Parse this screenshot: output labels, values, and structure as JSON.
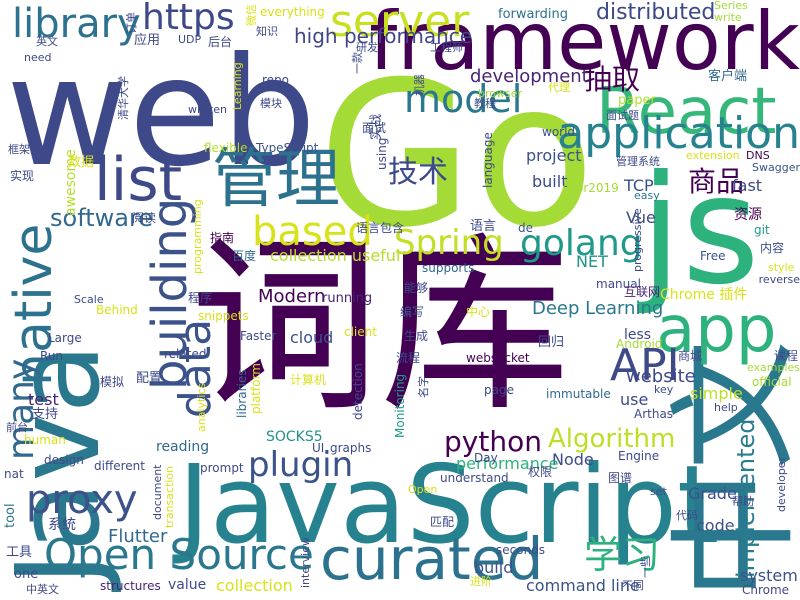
{
  "words": [
    {
      "text": "Go",
      "color": "#a5db36"
    },
    {
      "text": "web",
      "color": "#3e4989"
    },
    {
      "text": "词库",
      "color": "#440154"
    },
    {
      "text": "JavaScript",
      "color": "#26828e"
    },
    {
      "text": "Java",
      "color": "#2a788e"
    },
    {
      "text": "framework",
      "color": "#440154"
    },
    {
      "text": "js",
      "color": "#2db27d"
    },
    {
      "text": "中文",
      "color": "#2a788e"
    },
    {
      "text": "React",
      "color": "#35b779"
    },
    {
      "text": "app",
      "color": "#2db27d"
    },
    {
      "text": "curated",
      "color": "#2c728e"
    },
    {
      "text": "Open Source",
      "color": "#2a788e"
    },
    {
      "text": "list",
      "color": "#3e4989"
    },
    {
      "text": "管理",
      "color": "#2c728e"
    },
    {
      "text": "native",
      "color": "#2c728e"
    },
    {
      "text": "server",
      "color": "#c8e020"
    },
    {
      "text": "library",
      "color": "#2c728e"
    },
    {
      "text": "application",
      "color": "#26828e"
    },
    {
      "text": "building",
      "color": "#3b528b"
    },
    {
      "text": "API",
      "color": "#3e4989"
    },
    {
      "text": "model",
      "color": "#2a788e"
    },
    {
      "text": "proxy",
      "color": "#3b528b"
    },
    {
      "text": "based",
      "color": "#d8e219"
    },
    {
      "text": "Spring",
      "color": "#c2df23"
    },
    {
      "text": "golang",
      "color": "#1f9a8a"
    },
    {
      "text": "data",
      "color": "#3b528b"
    },
    {
      "text": "https",
      "color": "#3e4989"
    },
    {
      "text": "many",
      "color": "#31688e"
    },
    {
      "text": "plugin",
      "color": "#3b528b"
    },
    {
      "text": "python",
      "color": "#440154"
    },
    {
      "text": "Algorithm",
      "color": "#bddf26"
    },
    {
      "text": "学习",
      "color": "#2db27d"
    },
    {
      "text": "技术",
      "color": "#3e4989"
    },
    {
      "text": "商品",
      "color": "#440154"
    },
    {
      "text": "抽取",
      "color": "#440154"
    },
    {
      "text": "software",
      "color": "#31688e"
    },
    {
      "text": "implemented",
      "color": "#287c8e"
    },
    {
      "text": "high performance",
      "color": "#404688"
    },
    {
      "text": "distributed",
      "color": "#3e4989"
    },
    {
      "text": "development",
      "color": "#482475"
    },
    {
      "text": "website",
      "color": "#3e4989"
    },
    {
      "text": "Modern",
      "color": "#440154"
    },
    {
      "text": "Deep Learning",
      "color": "#2a788e"
    },
    {
      "text": "Flutter",
      "color": "#31688e"
    },
    {
      "text": "project",
      "color": "#3b528b"
    },
    {
      "text": "cloud",
      "color": "#3b528b"
    },
    {
      "text": "collection useful",
      "color": "#b5de2b"
    },
    {
      "text": "command line",
      "color": "#3b528b"
    },
    {
      "text": "collection",
      "color": "#d8e219"
    },
    {
      "text": "system",
      "color": "#3b528b"
    },
    {
      "text": "build",
      "color": "#3b528b"
    },
    {
      "text": "Vue",
      "color": "#3e4989"
    },
    {
      "text": "NET",
      "color": "#21918c"
    },
    {
      "text": "built",
      "color": "#3e4989"
    },
    {
      "text": "fast",
      "color": "#3e4989"
    },
    {
      "text": "TCP",
      "color": "#3b528b"
    },
    {
      "text": "Node",
      "color": "#3e4989"
    },
    {
      "text": "performance",
      "color": "#2db27d"
    },
    {
      "text": "SOCKS5",
      "color": "#21918c"
    },
    {
      "text": "code",
      "color": "#3b528b"
    },
    {
      "text": "test",
      "color": "#482475"
    },
    {
      "text": "Grade",
      "color": "#3b528b"
    },
    {
      "text": "simple",
      "color": "#bddf26"
    },
    {
      "text": "use",
      "color": "#3e4989"
    },
    {
      "text": "less",
      "color": "#3e4989"
    },
    {
      "text": "reading",
      "color": "#31688e"
    },
    {
      "text": "Chrome 插件",
      "color": "#d8e219"
    },
    {
      "text": "资源",
      "color": "#440154"
    },
    {
      "text": "客户端",
      "color": "#31688e"
    },
    {
      "text": "running",
      "color": "#482475"
    },
    {
      "text": "value",
      "color": "#3e4989"
    },
    {
      "text": "structures",
      "color": "#482475"
    },
    {
      "text": "seconds",
      "color": "#3e4989"
    },
    {
      "text": "awesome",
      "color": "#b5de2b"
    },
    {
      "text": "everything",
      "color": "#d8e219"
    },
    {
      "text": "forwarding",
      "color": "#2c728e"
    },
    {
      "text": "Series",
      "color": "#a5db36"
    },
    {
      "text": "write",
      "color": "#a5db36"
    },
    {
      "text": "TypeScript",
      "color": "#3b528b"
    },
    {
      "text": "world",
      "color": "#3b528b"
    },
    {
      "text": "language",
      "color": "#3e4989"
    },
    {
      "text": "browser",
      "color": "#a5db36"
    },
    {
      "text": "paper",
      "color": "#b5de2b"
    },
    {
      "text": "面试题",
      "color": "#3e4989"
    },
    {
      "text": "管理系统",
      "color": "#3e4989"
    },
    {
      "text": "extension",
      "color": "#d8e219"
    },
    {
      "text": "DNS",
      "color": "#440154"
    },
    {
      "text": "Swagger",
      "color": "#3b528b"
    },
    {
      "text": "easy",
      "color": "#2a788e"
    },
    {
      "text": "git",
      "color": "#1f9a8a"
    },
    {
      "text": "内容",
      "color": "#3b528b"
    },
    {
      "text": "Free",
      "color": "#3b528b"
    },
    {
      "text": "style",
      "color": "#d8e219"
    },
    {
      "text": "reverse",
      "color": "#3e4989"
    },
    {
      "text": "manual",
      "color": "#3e4989"
    },
    {
      "text": "互联网",
      "color": "#482475"
    },
    {
      "text": "progressive",
      "color": "#3e4989"
    },
    {
      "text": "supports",
      "color": "#31688e"
    },
    {
      "text": "de",
      "color": "#3b528b"
    },
    {
      "text": "语言",
      "color": "#3e4989"
    },
    {
      "text": "语言包含",
      "color": "#3e4989"
    },
    {
      "text": "百度",
      "color": "#31688e"
    },
    {
      "text": "指南",
      "color": "#440154"
    },
    {
      "text": "阅读",
      "color": "#3e4989"
    },
    {
      "text": "cvpr2019",
      "color": "#a5db36"
    },
    {
      "text": "flexible",
      "color": "#b5de2b"
    },
    {
      "text": "using",
      "color": "#3e4989"
    },
    {
      "text": "实战",
      "color": "#3e4989"
    },
    {
      "text": "面试",
      "color": "#3e4989"
    },
    {
      "text": "编写",
      "color": "#3b528b"
    },
    {
      "text": "生成",
      "color": "#3e4989"
    },
    {
      "text": "中心",
      "color": "#d8e219"
    },
    {
      "text": "回归",
      "color": "#3e4989"
    },
    {
      "text": "Android",
      "color": "#a5db36"
    },
    {
      "text": "商城",
      "color": "#3e4989"
    },
    {
      "text": "课程",
      "color": "#3e4989"
    },
    {
      "text": "examples",
      "color": "#a5db36"
    },
    {
      "text": "official",
      "color": "#a5db36"
    },
    {
      "text": "help",
      "color": "#3e4989"
    },
    {
      "text": "key",
      "color": "#3e4989"
    },
    {
      "text": "immutable",
      "color": "#31688e"
    },
    {
      "text": "Arthas",
      "color": "#3e4989"
    },
    {
      "text": "websocket",
      "color": "#440154"
    },
    {
      "text": "page",
      "color": "#3e4989"
    },
    {
      "text": "related",
      "color": "#3e4989"
    },
    {
      "text": "Faster",
      "color": "#3e4989"
    },
    {
      "text": "client",
      "color": "#d8e219"
    },
    {
      "text": "流程",
      "color": "#3e4989"
    },
    {
      "text": "能够",
      "color": "#3e4989"
    },
    {
      "text": "detection",
      "color": "#3e4989"
    },
    {
      "text": "Monitoring",
      "color": "#1f9a8a"
    },
    {
      "text": "计算机",
      "color": "#d8e219"
    },
    {
      "text": "libraries",
      "color": "#31688e"
    },
    {
      "text": "platform",
      "color": "#d8e219"
    },
    {
      "text": "模拟",
      "color": "#3e4989"
    },
    {
      "text": "配置",
      "color": "#3e4989"
    },
    {
      "text": "程序",
      "color": "#3e4989"
    },
    {
      "text": "snippets",
      "color": "#d8e219"
    },
    {
      "text": "Behind",
      "color": "#d8e219"
    },
    {
      "text": "Scale",
      "color": "#3e4989"
    },
    {
      "text": "Large",
      "color": "#3e4989"
    },
    {
      "text": "Run",
      "color": "#3e4989"
    },
    {
      "text": "支持",
      "color": "#3e4989"
    },
    {
      "text": "human",
      "color": "#d8e219"
    },
    {
      "text": "design",
      "color": "#3e4989"
    },
    {
      "text": "前台",
      "color": "#3e4989"
    },
    {
      "text": "nat",
      "color": "#3e4989"
    },
    {
      "text": "tool",
      "color": "#2c728e"
    },
    {
      "text": "系统",
      "color": "#3e4989"
    },
    {
      "text": "工具",
      "color": "#3e4989"
    },
    {
      "text": "one",
      "color": "#3e4989"
    },
    {
      "text": "中英文",
      "color": "#3e4989"
    },
    {
      "text": "different",
      "color": "#3e4989"
    },
    {
      "text": "prompt",
      "color": "#3e4989"
    },
    {
      "text": "analytics",
      "color": "#d8e219"
    },
    {
      "text": "document",
      "color": "#3e4989"
    },
    {
      "text": "transaction",
      "color": "#d8e219"
    },
    {
      "text": "graphs",
      "color": "#3e4989"
    },
    {
      "text": "UI",
      "color": "#3e4989"
    },
    {
      "text": "interview",
      "color": "#3e4989"
    },
    {
      "text": "Day",
      "color": "#3e4989"
    },
    {
      "text": "understand",
      "color": "#3e4989"
    },
    {
      "text": "Open",
      "color": "#d8e219"
    },
    {
      "text": "权限",
      "color": "#3e4989"
    },
    {
      "text": "图谱",
      "color": "#3e4989"
    },
    {
      "text": "Engine",
      "color": "#3e4989"
    },
    {
      "text": "set",
      "color": "#3e4989"
    },
    {
      "text": "帮助",
      "color": "#3e4989"
    },
    {
      "text": "developer",
      "color": "#3e4989"
    },
    {
      "text": "匹配",
      "color": "#3e4989"
    },
    {
      "text": "代码",
      "color": "#3e4989"
    },
    {
      "text": "进阶",
      "color": "#d8e219"
    },
    {
      "text": "一些",
      "color": "#3e4989"
    },
    {
      "text": "不同",
      "color": "#3e4989"
    },
    {
      "text": "Chrome",
      "color": "#3e4989"
    },
    {
      "text": "need",
      "color": "#3e4989"
    },
    {
      "text": "英文",
      "color": "#3e4989"
    },
    {
      "text": "订单",
      "color": "#3e4989"
    },
    {
      "text": "应用",
      "color": "#3e4989"
    },
    {
      "text": "UDP",
      "color": "#3e4989"
    },
    {
      "text": "后台",
      "color": "#3e4989"
    },
    {
      "text": "微信",
      "color": "#d8e219"
    },
    {
      "text": "知识",
      "color": "#3e4989"
    },
    {
      "text": "工程师",
      "color": "#3e4989"
    },
    {
      "text": "研发",
      "color": "#3e4989"
    },
    {
      "text": "一款",
      "color": "#3e4989"
    },
    {
      "text": "机器",
      "color": "#3e4989"
    },
    {
      "text": "repo",
      "color": "#3e4989"
    },
    {
      "text": "Learning",
      "color": "#d8e219"
    },
    {
      "text": "模块",
      "color": "#3e4989"
    },
    {
      "text": "written",
      "color": "#3e4989"
    },
    {
      "text": "清华大学",
      "color": "#3e4989"
    },
    {
      "text": "框架",
      "color": "#3e4989"
    },
    {
      "text": "数据",
      "color": "#d8e219"
    },
    {
      "text": "实现",
      "color": "#3e4989"
    },
    {
      "text": "programming",
      "color": "#d8e219"
    },
    {
      "text": "教程",
      "color": "#3e4989"
    },
    {
      "text": "代理",
      "color": "#d8e219"
    },
    {
      "text": "名字",
      "color": "#3e4989"
    }
  ]
}
